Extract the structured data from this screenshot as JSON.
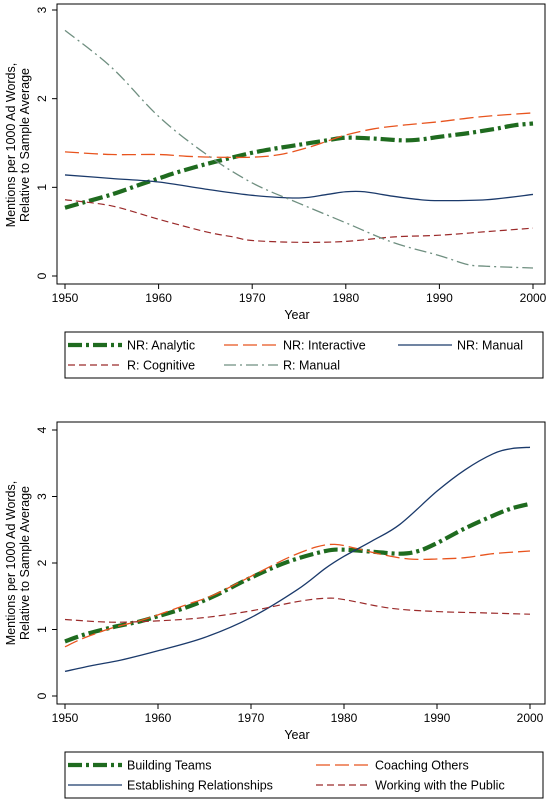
{
  "chart_data": [
    {
      "type": "line",
      "xlabel": "Year",
      "ylabel_lines": [
        "Mentions per 1000 Ad Words,",
        "Relative to Sample Average"
      ],
      "xlim": [
        1950,
        2000
      ],
      "ylim": [
        0,
        3
      ],
      "xticks": [
        1950,
        1960,
        1970,
        1980,
        1990,
        2000
      ],
      "yticks": [
        0,
        1,
        2,
        3
      ],
      "grid": false,
      "legend_position": "bottom",
      "series": [
        {
          "name": "NR: Analytic",
          "color": "#1f6b1f",
          "style": "dashdot-thick",
          "x": [
            1950,
            1952,
            1955,
            1958,
            1960,
            1962,
            1965,
            1968,
            1970,
            1972,
            1975,
            1978,
            1980,
            1983,
            1986,
            1988,
            1990,
            1993,
            1996,
            1998,
            2000
          ],
          "y": [
            0.77,
            0.83,
            0.92,
            1.03,
            1.1,
            1.17,
            1.26,
            1.34,
            1.39,
            1.43,
            1.48,
            1.53,
            1.56,
            1.55,
            1.53,
            1.54,
            1.57,
            1.61,
            1.66,
            1.7,
            1.72
          ]
        },
        {
          "name": "NR: Interactive",
          "color": "#e8541e",
          "style": "longdash",
          "x": [
            1950,
            1955,
            1960,
            1963,
            1966,
            1970,
            1973,
            1976,
            1978,
            1980,
            1983,
            1986,
            1990,
            1993,
            1996,
            2000
          ],
          "y": [
            1.4,
            1.37,
            1.37,
            1.35,
            1.34,
            1.34,
            1.37,
            1.45,
            1.52,
            1.59,
            1.66,
            1.7,
            1.74,
            1.78,
            1.81,
            1.84
          ]
        },
        {
          "name": "NR: Manual",
          "color": "#1b3a6b",
          "style": "solid",
          "x": [
            1950,
            1955,
            1960,
            1965,
            1970,
            1975,
            1978,
            1980,
            1982,
            1985,
            1988,
            1990,
            1995,
            2000
          ],
          "y": [
            1.14,
            1.1,
            1.06,
            0.98,
            0.91,
            0.88,
            0.92,
            0.95,
            0.95,
            0.9,
            0.86,
            0.85,
            0.86,
            0.92
          ]
        },
        {
          "name": "R: Cognitive",
          "color": "#9b2a2a",
          "style": "dash",
          "x": [
            1950,
            1955,
            1960,
            1965,
            1968,
            1970,
            1975,
            1980,
            1985,
            1990,
            1995,
            2000
          ],
          "y": [
            0.86,
            0.79,
            0.64,
            0.5,
            0.44,
            0.4,
            0.38,
            0.39,
            0.44,
            0.46,
            0.5,
            0.54
          ]
        },
        {
          "name": "R: Manual",
          "color": "#6f8f80",
          "style": "dashdot",
          "x": [
            1950,
            1955,
            1960,
            1965,
            1970,
            1975,
            1980,
            1985,
            1990,
            1993,
            1995,
            2000
          ],
          "y": [
            2.77,
            2.35,
            1.8,
            1.38,
            1.05,
            0.82,
            0.6,
            0.38,
            0.23,
            0.13,
            0.11,
            0.09
          ]
        }
      ]
    },
    {
      "type": "line",
      "xlabel": "Year",
      "ylabel_lines": [
        "Mentions per 1000 Ad Words,",
        "Relative to Sample Average"
      ],
      "xlim": [
        1950,
        2000
      ],
      "ylim": [
        0,
        4
      ],
      "xticks": [
        1950,
        1960,
        1970,
        1980,
        1990,
        2000
      ],
      "yticks": [
        0,
        1,
        2,
        3,
        4
      ],
      "grid": false,
      "legend_position": "bottom",
      "series": [
        {
          "name": "Building Teams",
          "color": "#1f6b1f",
          "style": "dashdot-thick",
          "x": [
            1950,
            1952,
            1955,
            1958,
            1960,
            1963,
            1966,
            1970,
            1974,
            1978,
            1980,
            1983,
            1986,
            1988,
            1990,
            1993,
            1996,
            1998,
            2000
          ],
          "y": [
            0.82,
            0.92,
            1.03,
            1.12,
            1.2,
            1.33,
            1.5,
            1.78,
            2.02,
            2.18,
            2.2,
            2.17,
            2.14,
            2.18,
            2.3,
            2.52,
            2.71,
            2.82,
            2.89
          ]
        },
        {
          "name": "Coaching Others",
          "color": "#e8541e",
          "style": "longdash",
          "x": [
            1950,
            1952,
            1955,
            1958,
            1960,
            1963,
            1966,
            1970,
            1974,
            1977,
            1979,
            1981,
            1984,
            1987,
            1990,
            1993,
            1996,
            2000
          ],
          "y": [
            0.74,
            0.87,
            1.02,
            1.13,
            1.22,
            1.37,
            1.52,
            1.8,
            2.08,
            2.24,
            2.28,
            2.23,
            2.13,
            2.06,
            2.06,
            2.08,
            2.14,
            2.18
          ]
        },
        {
          "name": "Establishing Relationships",
          "color": "#1b3a6b",
          "style": "solid",
          "x": [
            1950,
            1953,
            1956,
            1960,
            1965,
            1970,
            1975,
            1978,
            1980,
            1983,
            1986,
            1990,
            1993,
            1996,
            1998,
            2000
          ],
          "y": [
            0.37,
            0.46,
            0.54,
            0.68,
            0.88,
            1.18,
            1.6,
            1.92,
            2.1,
            2.33,
            2.58,
            3.08,
            3.4,
            3.64,
            3.72,
            3.74
          ]
        },
        {
          "name": "Working with the Public",
          "color": "#9b2a2a",
          "style": "dash",
          "x": [
            1950,
            1955,
            1960,
            1965,
            1970,
            1975,
            1978,
            1980,
            1985,
            1990,
            1995,
            2000
          ],
          "y": [
            1.15,
            1.11,
            1.13,
            1.18,
            1.28,
            1.42,
            1.47,
            1.45,
            1.32,
            1.27,
            1.25,
            1.23
          ]
        }
      ]
    }
  ]
}
